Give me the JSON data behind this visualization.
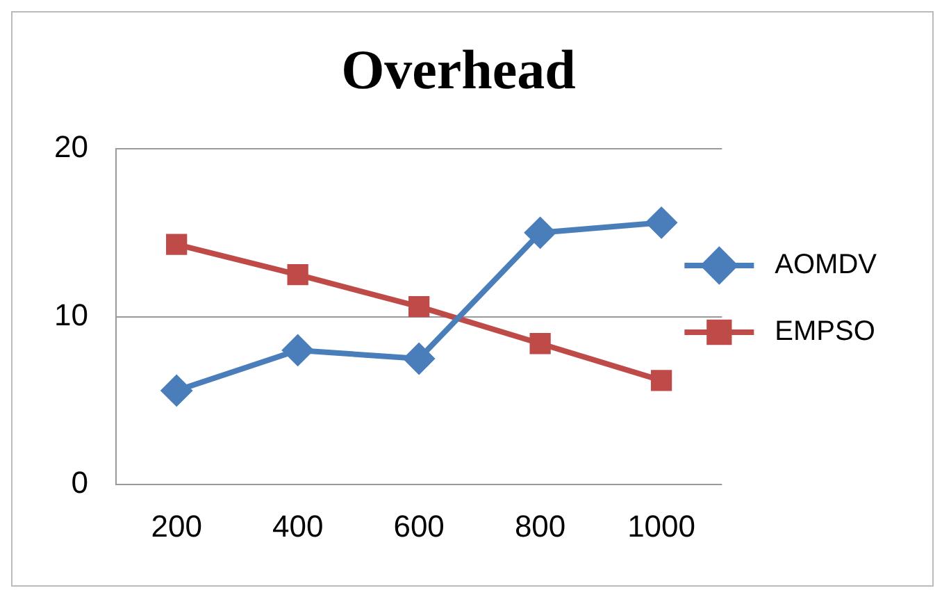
{
  "chart_data": {
    "type": "line",
    "title": "Overhead",
    "categories": [
      "200",
      "400",
      "600",
      "800",
      "1000"
    ],
    "series": [
      {
        "name": "AOMDV",
        "color": "#4a7ebb",
        "marker": "diamond",
        "values": [
          5.6,
          8.0,
          7.5,
          15.0,
          15.6
        ]
      },
      {
        "name": "EMPSO",
        "color": "#be4b48",
        "marker": "square",
        "values": [
          14.3,
          12.5,
          10.6,
          8.4,
          6.2
        ]
      }
    ],
    "ylim": [
      0,
      20
    ],
    "yticks": [
      0,
      10,
      20
    ],
    "grid": "y",
    "legend": "right"
  }
}
